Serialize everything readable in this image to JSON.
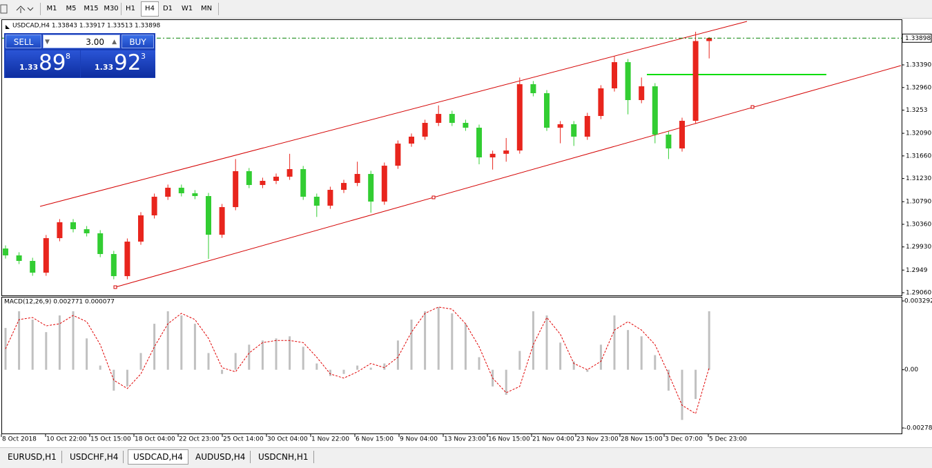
{
  "toolbar": {
    "timeframes": [
      "M1",
      "M5",
      "M15",
      "M30",
      "H1",
      "H4",
      "D1",
      "W1",
      "MN"
    ],
    "active_index": 5
  },
  "chart_data": [
    {
      "type": "candlestick",
      "title": "USDCAD,H4  1.33843 1.33917 1.33513 1.33898",
      "bull_color": "#e8251d",
      "bear_color": "#32cd32",
      "open": [
        1.299,
        1.29769,
        1.29664,
        1.29441,
        1.30097,
        1.30399,
        1.30267,
        1.30189,
        1.29795,
        1.29375,
        1.30031,
        1.3053,
        1.30884,
        1.31055,
        1.3095,
        1.30897,
        1.30162,
        1.30687,
        1.3137,
        1.31107,
        1.31186,
        1.31265,
        1.31409,
        1.30884,
        1.30714,
        1.31015,
        1.31146,
        1.31317,
        1.30792,
        1.31474,
        1.31894,
        1.32026,
        1.32288,
        1.32458,
        1.32288,
        1.32196,
        1.31632,
        1.317,
        1.31763,
        1.33023,
        1.32852,
        1.32196,
        1.32262,
        1.32026,
        1.32419,
        1.32944,
        1.33442,
        1.32721,
        1.32983,
        1.32065,
        1.31802,
        1.32327,
        1.33843
      ],
      "high": [
        1.2996,
        1.29829,
        1.29724,
        1.30157,
        1.30459,
        1.30459,
        1.30327,
        1.30249,
        1.29855,
        1.30091,
        1.3059,
        1.30944,
        1.31115,
        1.31115,
        1.3101,
        1.30957,
        1.30747,
        1.316,
        1.3143,
        1.31246,
        1.31325,
        1.317,
        1.31469,
        1.30944,
        1.31075,
        1.31206,
        1.3155,
        1.31377,
        1.31534,
        1.31954,
        1.32086,
        1.32348,
        1.3262,
        1.32518,
        1.32348,
        1.32256,
        1.3176,
        1.32,
        1.3315,
        1.33083,
        1.32912,
        1.32322,
        1.32322,
        1.32479,
        1.33004,
        1.3355,
        1.33502,
        1.3315,
        1.33043,
        1.32125,
        1.32387,
        1.3402,
        1.33917
      ],
      "low": [
        1.29709,
        1.29604,
        1.29381,
        1.29381,
        1.30037,
        1.30207,
        1.30129,
        1.29735,
        1.29315,
        1.29315,
        1.29971,
        1.3047,
        1.30824,
        1.3089,
        1.30837,
        1.29703,
        1.30102,
        1.30627,
        1.31047,
        1.31047,
        1.31126,
        1.31205,
        1.30824,
        1.305,
        1.30654,
        1.30955,
        1.31086,
        1.3058,
        1.30732,
        1.31414,
        1.31834,
        1.31966,
        1.32228,
        1.32228,
        1.32136,
        1.315,
        1.314,
        1.3155,
        1.31703,
        1.32792,
        1.32136,
        1.319,
        1.3185,
        1.31966,
        1.32359,
        1.32884,
        1.3245,
        1.32661,
        1.319,
        1.316,
        1.31742,
        1.32267,
        1.33513
      ],
      "close": [
        1.29769,
        1.29664,
        1.29441,
        1.30097,
        1.30399,
        1.30267,
        1.30189,
        1.29795,
        1.29375,
        1.30031,
        1.3053,
        1.30884,
        1.31055,
        1.3095,
        1.30897,
        1.30162,
        1.30687,
        1.3137,
        1.31107,
        1.31186,
        1.31265,
        1.31409,
        1.30884,
        1.30714,
        1.31015,
        1.31146,
        1.31317,
        1.30792,
        1.31474,
        1.31894,
        1.32026,
        1.32288,
        1.32458,
        1.32288,
        1.32196,
        1.31632,
        1.317,
        1.31763,
        1.33023,
        1.32852,
        1.32196,
        1.32262,
        1.32026,
        1.32419,
        1.32944,
        1.33442,
        1.32721,
        1.32983,
        1.32065,
        1.31802,
        1.32327,
        1.33843,
        1.33898
      ],
      "ylim": [
        1.29008,
        1.34256
      ],
      "yticks": [
        {
          "value": 1.3339,
          "label": "1.33390"
        },
        {
          "value": 1.3296,
          "label": "1.32960"
        },
        1.3253,
        {
          "value": 1.3209,
          "label": "1.32090"
        },
        {
          "value": 1.3166,
          "label": "1.31660"
        },
        {
          "value": 1.3123,
          "label": "1.31230"
        },
        {
          "value": 1.3079,
          "label": "1.30790"
        },
        {
          "value": 1.3036,
          "label": "1.30360"
        },
        {
          "value": 1.2993,
          "label": "1.29930"
        },
        1.2949,
        {
          "value": 1.2906,
          "label": "1.29060"
        }
      ],
      "current_price": 1.33898,
      "xtick_labels": [
        "8 Oct 2018",
        "10 Oct 22:00",
        "15 Oct 15:00",
        "18 Oct 04:00",
        "22 Oct 23:00",
        "25 Oct 14:00",
        "30 Oct 04:00",
        "1 Nov 22:00",
        "6 Nov 15:00",
        "9 Nov 04:00",
        "13 Nov 23:00",
        "16 Nov 15:00",
        "21 Nov 04:00",
        "23 Nov 23:00",
        "28 Nov 15:00",
        "3 Dec 07:00",
        "5 Dec 23:00"
      ]
    },
    {
      "type": "macd",
      "title": "MACD(12,26,9) 0.002771 0.000077",
      "histogram": [
        0.002,
        0.0028,
        0.0024,
        0.0018,
        0.0026,
        0.0028,
        0.0015,
        0.0002,
        -0.001,
        -0.0008,
        0.0008,
        0.0022,
        0.0028,
        0.0026,
        0.0022,
        0.0008,
        -0.0002,
        0.0008,
        0.0012,
        0.0014,
        0.0015,
        0.0016,
        0.0011,
        0.0003,
        -0.0003,
        -0.0002,
        0.0002,
        0.0001,
        0.0003,
        0.0014,
        0.0024,
        0.0028,
        0.003,
        0.0027,
        0.0022,
        0.0006,
        -0.0008,
        -0.0012,
        0.0009,
        0.0028,
        0.0026,
        0.0013,
        0.0004,
        -0.0001,
        0.0012,
        0.0026,
        0.0019,
        0.0016,
        0.0007,
        -0.001,
        -0.0024,
        -0.0014,
        0.0028
      ],
      "signal": [
        0.001,
        0.0024,
        0.0025,
        0.0021,
        0.0022,
        0.0026,
        0.0023,
        0.0012,
        -0.0005,
        -0.0009,
        -0.0002,
        0.0011,
        0.0022,
        0.0027,
        0.0024,
        0.0015,
        0.0001,
        -0.0001,
        0.0008,
        0.0013,
        0.0014,
        0.0014,
        0.0013,
        0.0006,
        -0.0002,
        -0.0004,
        -0.0001,
        0.0003,
        0.0001,
        0.0006,
        0.0018,
        0.0027,
        0.003,
        0.0029,
        0.0022,
        0.0011,
        -0.0004,
        -0.0011,
        -0.0008,
        0.0012,
        0.0025,
        0.0017,
        0.0003,
        0.0,
        0.0004,
        0.0019,
        0.0023,
        0.0019,
        0.0012,
        -0.0002,
        -0.0017,
        -0.0021,
        0.0001
      ],
      "histogram_color": "#c0c0c0",
      "signal_color": "#e00000",
      "ylim": [
        -0.00305,
        0.00349
      ],
      "yticks": [
        0.003292,
        {
          "value": 0,
          "label": "0.00"
        },
        -0.002787
      ]
    }
  ],
  "trade_panel": {
    "sell": "SELL",
    "buy": "BUY",
    "volume": "3.00",
    "bid": {
      "big": "1.33",
      "main": "89",
      "small": "8"
    },
    "ask": {
      "big": "1.33",
      "main": "92",
      "small": "3"
    }
  },
  "tabs": [
    "EURUSD,H1",
    "USDCHF,H4",
    "USDCAD,H4",
    "AUDUSD,H4",
    "USDCNH,H1"
  ],
  "active_tab": 2
}
